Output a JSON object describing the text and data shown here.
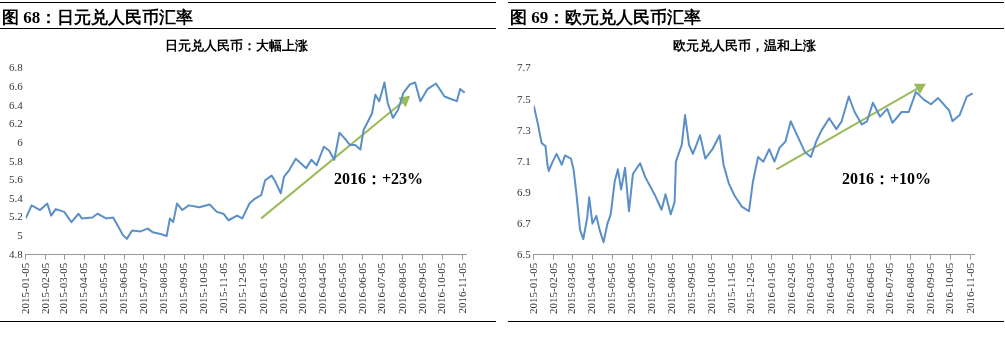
{
  "chart_data": [
    {
      "type": "line",
      "title": "图 68：日元兑人民币汇率",
      "subtitle": "日元兑人民币：大幅上涨",
      "grid": false,
      "legend": false,
      "marker": "none",
      "line_style": "solid",
      "x": [
        "2015-01-05",
        "2015-01-14",
        "2015-01-27",
        "2015-02-07",
        "2015-02-13",
        "2015-02-20",
        "2015-03-05",
        "2015-03-16",
        "2015-03-27",
        "2015-04-01",
        "2015-04-17",
        "2015-04-25",
        "2015-05-08",
        "2015-05-19",
        "2015-05-27",
        "2015-06-03",
        "2015-06-09",
        "2015-06-17",
        "2015-06-30",
        "2015-07-11",
        "2015-07-19",
        "2015-08-01",
        "2015-08-09",
        "2015-08-14",
        "2015-08-19",
        "2015-08-25",
        "2015-09-02",
        "2015-09-12",
        "2015-09-28",
        "2015-10-14",
        "2015-10-25",
        "2015-11-04",
        "2015-11-12",
        "2015-11-25",
        "2015-12-03",
        "2015-12-14",
        "2015-12-22",
        "2016-01-01",
        "2016-01-07",
        "2016-01-17",
        "2016-01-23",
        "2016-01-31",
        "2016-02-05",
        "2016-02-13",
        "2016-02-23",
        "2016-03-02",
        "2016-03-10",
        "2016-03-18",
        "2016-03-26",
        "2016-04-06",
        "2016-04-14",
        "2016-04-22",
        "2016-04-30",
        "2016-05-08",
        "2016-05-16",
        "2016-05-24",
        "2016-06-01",
        "2016-06-06",
        "2016-06-14",
        "2016-06-19",
        "2016-06-24",
        "2016-06-30",
        "2016-07-08",
        "2016-07-13",
        "2016-07-21",
        "2016-07-29",
        "2016-08-06",
        "2016-08-16",
        "2016-08-24",
        "2016-09-01",
        "2016-09-12",
        "2016-09-25",
        "2016-10-08",
        "2016-10-19",
        "2016-10-27",
        "2016-11-01",
        "2016-11-08"
      ],
      "series": [
        {
          "type": "line",
          "color": "#5b8fc7",
          "values": [
            5.19,
            5.33,
            5.28,
            5.35,
            5.22,
            5.29,
            5.26,
            5.15,
            5.24,
            5.19,
            5.2,
            5.24,
            5.19,
            5.2,
            5.1,
            5.01,
            4.97,
            5.06,
            5.05,
            5.08,
            5.04,
            5.02,
            5.0,
            5.19,
            5.15,
            5.35,
            5.28,
            5.33,
            5.31,
            5.34,
            5.26,
            5.24,
            5.17,
            5.22,
            5.19,
            5.35,
            5.4,
            5.44,
            5.6,
            5.65,
            5.58,
            5.46,
            5.64,
            5.71,
            5.83,
            5.78,
            5.73,
            5.82,
            5.76,
            5.96,
            5.92,
            5.82,
            6.11,
            6.05,
            5.98,
            5.98,
            5.93,
            6.14,
            6.25,
            6.32,
            6.52,
            6.45,
            6.65,
            6.43,
            6.27,
            6.36,
            6.54,
            6.63,
            6.65,
            6.45,
            6.58,
            6.64,
            6.5,
            6.47,
            6.45,
            6.58,
            6.54
          ]
        },
        {
          "type": "line",
          "color": "#9bbb59",
          "marker": "triangle",
          "x": [
            "2016-01-01",
            "2016-08-08"
          ],
          "values": [
            5.19,
            6.46
          ]
        }
      ],
      "xlim": [
        "2015-01-05",
        "2016-11-10"
      ],
      "xticks": [
        "2015-01-05",
        "2015-02-05",
        "2015-03-05",
        "2015-04-05",
        "2015-05-05",
        "2015-06-05",
        "2015-07-05",
        "2015-08-05",
        "2015-09-05",
        "2015-10-05",
        "2015-11-05",
        "2015-12-05",
        "2016-01-05",
        "2016-02-05",
        "2016-03-05",
        "2016-04-05",
        "2016-05-05",
        "2016-06-05",
        "2016-07-05",
        "2016-08-05",
        "2016-09-05",
        "2016-10-05",
        "2016-11-05"
      ],
      "ylim": [
        4.8,
        6.8
      ],
      "yticks": [
        4.8,
        5,
        5.2,
        5.4,
        5.6,
        5.8,
        6,
        6.2,
        6.4,
        6.6,
        6.8
      ],
      "annotations": [
        "2016：+23%"
      ]
    },
    {
      "type": "line",
      "title": "图 69：欧元兑人民币汇率",
      "subtitle": "欧元兑人民币，温和上涨",
      "grid": false,
      "legend": false,
      "marker": "none",
      "line_style": "solid",
      "x": [
        "2015-01-05",
        "2015-01-11",
        "2015-01-17",
        "2015-01-23",
        "2015-01-26",
        "2015-01-28",
        "2015-02-03",
        "2015-02-09",
        "2015-02-17",
        "2015-02-22",
        "2015-03-03",
        "2015-03-07",
        "2015-03-11",
        "2015-03-17",
        "2015-03-22",
        "2015-03-28",
        "2015-03-31",
        "2015-04-05",
        "2015-04-11",
        "2015-04-16",
        "2015-04-22",
        "2015-04-28",
        "2015-05-03",
        "2015-05-09",
        "2015-05-14",
        "2015-05-19",
        "2015-05-25",
        "2015-05-31",
        "2015-06-06",
        "2015-06-17",
        "2015-06-25",
        "2015-07-09",
        "2015-07-20",
        "2015-07-26",
        "2015-08-03",
        "2015-08-09",
        "2015-08-11",
        "2015-08-20",
        "2015-08-25",
        "2015-08-31",
        "2015-09-06",
        "2015-09-17",
        "2015-09-25",
        "2015-10-06",
        "2015-10-17",
        "2015-10-23",
        "2015-10-31",
        "2015-11-09",
        "2015-11-20",
        "2015-12-01",
        "2015-12-07",
        "2015-12-15",
        "2015-12-23",
        "2016-01-01",
        "2016-01-09",
        "2016-01-17",
        "2016-01-26",
        "2016-02-03",
        "2016-02-14",
        "2016-02-25",
        "2016-03-05",
        "2016-03-13",
        "2016-03-21",
        "2016-04-02",
        "2016-04-13",
        "2016-04-21",
        "2016-05-02",
        "2016-05-11",
        "2016-05-22",
        "2016-05-30",
        "2016-06-08",
        "2016-06-19",
        "2016-06-30",
        "2016-07-08",
        "2016-07-22",
        "2016-08-02",
        "2016-08-13",
        "2016-08-25",
        "2016-09-05",
        "2016-09-16",
        "2016-10-03",
        "2016-10-08",
        "2016-10-19",
        "2016-10-30",
        "2016-11-08"
      ],
      "series": [
        {
          "type": "line",
          "color": "#5b8fc7",
          "values": [
            7.46,
            7.35,
            7.22,
            7.2,
            7.08,
            7.04,
            7.1,
            7.15,
            7.08,
            7.14,
            7.12,
            7.05,
            6.91,
            6.66,
            6.6,
            6.74,
            6.87,
            6.7,
            6.75,
            6.66,
            6.58,
            6.7,
            6.76,
            6.97,
            7.05,
            6.92,
            7.06,
            6.78,
            7.02,
            7.09,
            7.0,
            6.89,
            6.79,
            6.89,
            6.76,
            6.84,
            7.1,
            7.21,
            7.4,
            7.21,
            7.15,
            7.27,
            7.12,
            7.18,
            7.27,
            7.08,
            6.96,
            6.88,
            6.81,
            6.78,
            6.97,
            7.13,
            7.1,
            7.18,
            7.1,
            7.19,
            7.23,
            7.36,
            7.26,
            7.16,
            7.13,
            7.23,
            7.3,
            7.38,
            7.31,
            7.36,
            7.52,
            7.42,
            7.34,
            7.36,
            7.48,
            7.39,
            7.44,
            7.35,
            7.42,
            7.42,
            7.55,
            7.5,
            7.47,
            7.51,
            7.43,
            7.36,
            7.4,
            7.52,
            7.54
          ]
        },
        {
          "type": "line",
          "color": "#9bbb59",
          "marker": "triangle",
          "x": [
            "2016-01-12",
            "2016-08-19"
          ],
          "values": [
            7.05,
            7.58
          ]
        }
      ],
      "xlim": [
        "2015-01-05",
        "2016-11-10"
      ],
      "xticks": [
        "2015-01-05",
        "2015-02-05",
        "2015-03-05",
        "2015-04-05",
        "2015-05-05",
        "2015-06-05",
        "2015-07-05",
        "2015-08-05",
        "2015-09-05",
        "2015-10-05",
        "2015-11-05",
        "2015-12-05",
        "2016-01-05",
        "2016-02-05",
        "2016-03-05",
        "2016-04-05",
        "2016-05-05",
        "2016-06-05",
        "2016-07-05",
        "2016-08-05",
        "2016-09-05",
        "2016-10-05",
        "2016-11-05"
      ],
      "ylim": [
        6.5,
        7.7
      ],
      "yticks": [
        6.5,
        6.7,
        6.9,
        7.1,
        7.3,
        7.5,
        7.7
      ],
      "annotations": [
        "2016：+10%"
      ]
    }
  ]
}
